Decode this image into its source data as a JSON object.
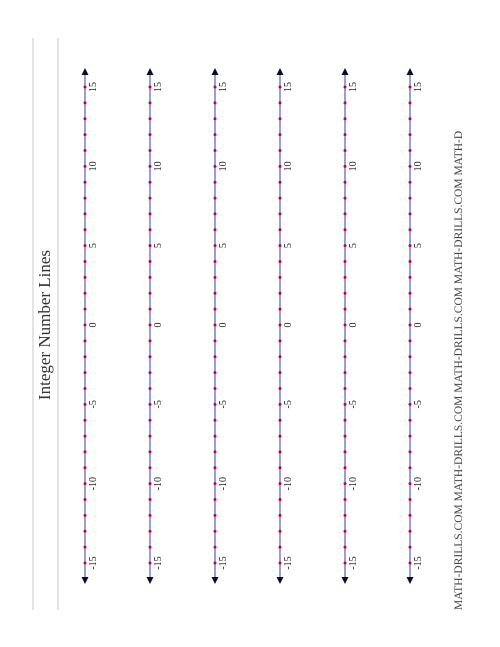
{
  "worksheet": {
    "title": "Integer Number Lines",
    "footer": "MATH-DRILLS.COM  MATH-DRILLS.COM  MATH-DRILLS.COM  MATH-DRILLS.COM  MATH-D"
  },
  "number_line": {
    "min": -15,
    "max": 15,
    "label_step": 5,
    "labels": [
      "-15",
      "-10",
      "-5",
      "0",
      "5",
      "10",
      "15"
    ],
    "count": 6,
    "line_color": "#5a5fb5",
    "dot_color": "#cc0033",
    "arrow_color": "#0a0a33"
  }
}
